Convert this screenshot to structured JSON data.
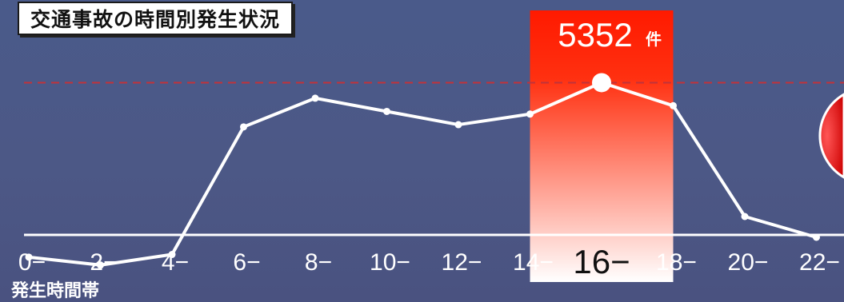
{
  "title": "交通事故の時間別発生状況",
  "chart_data": {
    "type": "line",
    "title": "交通事故の時間別発生状況",
    "xlabel": "発生時間帯",
    "ylabel": "",
    "categories": [
      "0−",
      "2−",
      "4−",
      "6−",
      "8−",
      "10−",
      "12−",
      "14−",
      "16−",
      "18−",
      "20−",
      "22−"
    ],
    "values": [
      1400,
      1220,
      1460,
      4350,
      5000,
      4700,
      4400,
      4640,
      5352,
      4830,
      2320,
      1850
    ],
    "ylim": [
      800,
      6500
    ],
    "grid": false,
    "highlight": {
      "category": "16−",
      "value_label": "5352",
      "unit": "件",
      "color_top": "#ff1a00",
      "color_bottom": "#ffffff"
    },
    "reference_line": {
      "value": 5352,
      "style": "dashed",
      "color": "#c0333a"
    }
  },
  "colors": {
    "line": "#ffffff",
    "baseline": "#ffffff"
  }
}
